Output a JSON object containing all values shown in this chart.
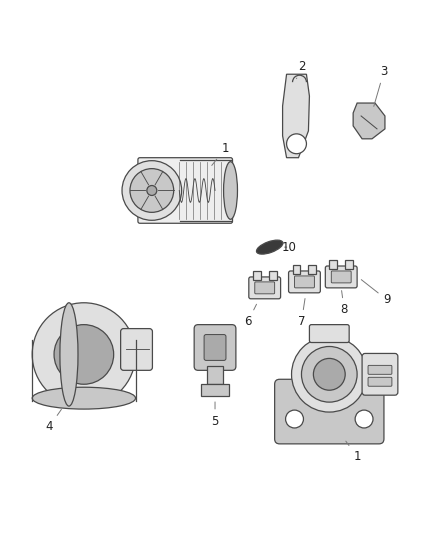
{
  "background_color": "#ffffff",
  "line_color": "#4a4a4a",
  "label_color": "#222222",
  "fig_width": 4.38,
  "fig_height": 5.33,
  "dpi": 100,
  "face_gray": "#e0e0e0",
  "mid_gray": "#c8c8c8",
  "dark_gray": "#aaaaaa",
  "light_gray": "#eeeeee"
}
